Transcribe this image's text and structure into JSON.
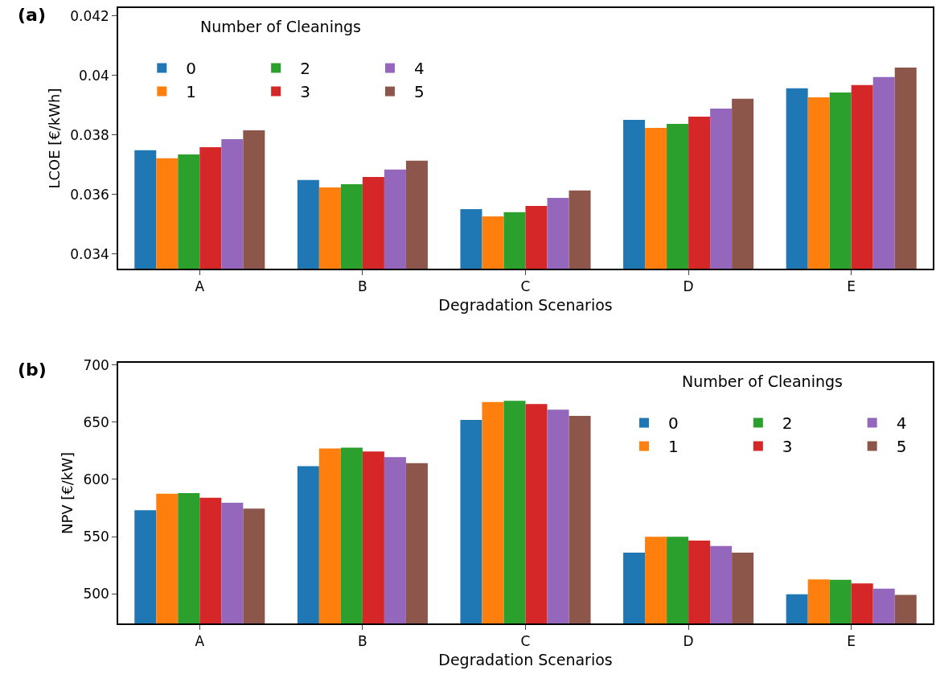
{
  "chart_data": [
    {
      "type": "bar",
      "annotations": [
        "(a)"
      ],
      "xlabel": "Degradation Scenarios",
      "ylabel": "LCOE [€/kWh]",
      "legend_title": "Number of Cleanings",
      "legend": "top left",
      "categories": [
        "A",
        "B",
        "C",
        "D",
        "E"
      ],
      "ylim": [
        0.03351,
        0.04227
      ],
      "yticks": [
        0.034,
        0.036,
        0.038,
        0.04,
        0.042
      ],
      "grid": false,
      "series": [
        {
          "name": "0",
          "color": "#1f77b4",
          "values": [
            0.03749,
            0.03649,
            0.03551,
            0.03851,
            0.03957
          ]
        },
        {
          "name": "1",
          "color": "#ff7f0e",
          "values": [
            0.03722,
            0.03624,
            0.03527,
            0.03824,
            0.03927
          ]
        },
        {
          "name": "2",
          "color": "#2ca02c",
          "values": [
            0.03735,
            0.03635,
            0.03541,
            0.03838,
            0.03943
          ]
        },
        {
          "name": "3",
          "color": "#d62728",
          "values": [
            0.03759,
            0.03659,
            0.03562,
            0.03862,
            0.03968
          ]
        },
        {
          "name": "4",
          "color": "#9467bd",
          "values": [
            0.03786,
            0.03684,
            0.03589,
            0.03889,
            0.03995
          ]
        },
        {
          "name": "5",
          "color": "#8c564b",
          "values": [
            0.03816,
            0.03714,
            0.03614,
            0.03922,
            0.04027
          ]
        }
      ]
    },
    {
      "type": "bar",
      "annotations": [
        "(b)"
      ],
      "xlabel": "Degradation Scenarios",
      "ylabel": "NPV [€/kW]",
      "legend_title": "Number of Cleanings",
      "legend": "top right",
      "categories": [
        "A",
        "B",
        "C",
        "D",
        "E"
      ],
      "ylim": [
        474,
        702
      ],
      "yticks": [
        500,
        550,
        600,
        650,
        700
      ],
      "grid": false,
      "series": [
        {
          "name": "0",
          "color": "#1f77b4",
          "values": [
            573,
            611.5,
            652,
            536,
            499.5
          ]
        },
        {
          "name": "1",
          "color": "#ff7f0e",
          "values": [
            587.5,
            627,
            667.7,
            549.8,
            512.6
          ]
        },
        {
          "name": "2",
          "color": "#2ca02c",
          "values": [
            588,
            627.7,
            668.7,
            549.8,
            512.2
          ]
        },
        {
          "name": "3",
          "color": "#d62728",
          "values": [
            584,
            624.4,
            666,
            546.5,
            509
          ]
        },
        {
          "name": "4",
          "color": "#9467bd",
          "values": [
            579.5,
            619.5,
            661,
            541.8,
            504.5
          ]
        },
        {
          "name": "5",
          "color": "#8c564b",
          "values": [
            574.5,
            614.3,
            655.5,
            536,
            498.9
          ]
        }
      ]
    }
  ]
}
